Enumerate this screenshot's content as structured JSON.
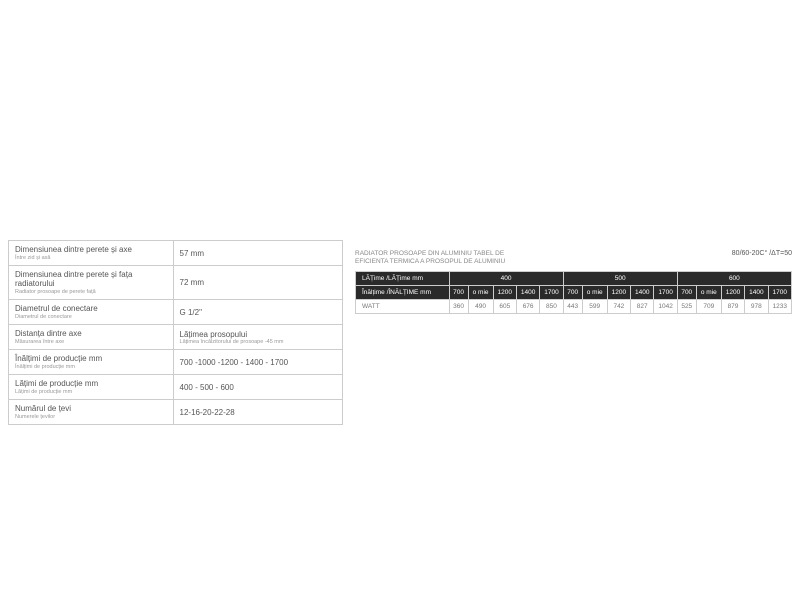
{
  "specs": [
    {
      "label": "Dimensiunea dintre perete și axe",
      "sub": "Între zid și axă",
      "value": "57 mm",
      "vsub": ""
    },
    {
      "label": "Dimensiunea dintre perete și fața radiatorului",
      "sub": "Radiator prosoape de perete față",
      "value": "72 mm",
      "vsub": ""
    },
    {
      "label": "Diametrul de conectare",
      "sub": "Diametrul de conectare",
      "value": "G 1/2\"",
      "vsub": ""
    },
    {
      "label": "Distanța dintre axe",
      "sub": "Măsurarea între axe",
      "value": "Lățimea prosopului",
      "vsub": "Lățimea încălzitorului de prosoape -45 mm"
    },
    {
      "label": "Înălțimi de producție mm",
      "sub": "Înălțimi de producție mm",
      "value": "700 -1000 -1200 - 1400 - 1700",
      "vsub": ""
    },
    {
      "label": "Lățimi de producție mm",
      "sub": "Lățimi de producție mm",
      "value": "400 - 500 - 600",
      "vsub": ""
    },
    {
      "label": "Numărul de țevi",
      "sub": "Numerele țevilor",
      "value": "12-16-20-22-28",
      "vsub": ""
    }
  ],
  "rightTitle1": "RADIATOR PROSOAPE DIN ALUMINIU TABEL DE",
  "rightTitle2": "EFICIENTA TERMICA A PROSOPUL DE ALUMINIU",
  "rightSpec": "80/60-20C° /ΔT=50",
  "perf": {
    "widthLabel": "LĂȚime /LĂȚime mm",
    "heightLabel": "Înălțime /ÎNĂLȚIME mm",
    "widths": [
      "400",
      "500",
      "600"
    ],
    "heights": [
      "700",
      "o mie",
      "1200",
      "1400",
      "1700"
    ],
    "rowLabel": "WATT",
    "values": [
      [
        "360",
        "490",
        "605",
        "676",
        "850",
        "443",
        "599",
        "742",
        "827",
        "1042",
        "525",
        "709",
        "879",
        "978",
        "1233"
      ]
    ]
  },
  "colors": {
    "border": "#cccccc",
    "labelText": "#555555",
    "subText": "#999999",
    "headerDark": "#2a2a2a",
    "headerText": "#ffffff",
    "dataText": "#777777"
  }
}
